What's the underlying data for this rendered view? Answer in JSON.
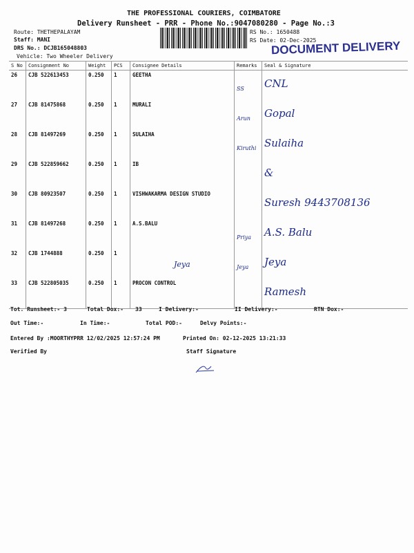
{
  "header": {
    "company": "THE PROFESSIONAL COURIERS, COIMBATORE",
    "subtitle": "Delivery Runsheet - PRR - Phone No.:9047080280 - Page No.:3",
    "route": "Route: THETHEPALAYAM",
    "staff": "Staff: MANI",
    "drs": "DRS No.: DCJB165048803",
    "vehicle": "Vehicle: Two Wheeler Delivery",
    "rs_no": "RS No.: 1650488",
    "rs_date": "RS Date: 02-Dec-2025",
    "stamp": "DOCUMENT DELIVERY"
  },
  "table": {
    "columns": [
      "S No",
      "Consignment No",
      "Weight",
      "PCS",
      "Consignee Details",
      "Remarks",
      "Seal & Signature"
    ],
    "rows": [
      {
        "sno": "26",
        "cn": "CJB 522613453",
        "weight": "0.250",
        "pcs": "1",
        "consignee": "GEETHA",
        "remark": "SS",
        "sign": "CNL"
      },
      {
        "sno": "27",
        "cn": "CJB 81475868",
        "weight": "0.250",
        "pcs": "1",
        "consignee": "MURALI",
        "remark": "Arun",
        "sign": "Gopal"
      },
      {
        "sno": "28",
        "cn": "CJB 81497269",
        "weight": "0.250",
        "pcs": "1",
        "consignee": "SULAIHA",
        "remark": "Kiruthi",
        "sign": "Sulaiha"
      },
      {
        "sno": "29",
        "cn": "CJB 522859662",
        "weight": "0.250",
        "pcs": "1",
        "consignee": "IB",
        "remark": "",
        "sign": "&"
      },
      {
        "sno": "30",
        "cn": "CJB 80923507",
        "weight": "0.250",
        "pcs": "1",
        "consignee": "VISHWAKARMA DESIGN STUDIO",
        "remark": "",
        "sign": "Suresh 9443708136"
      },
      {
        "sno": "31",
        "cn": "CJB 81497268",
        "weight": "0.250",
        "pcs": "1",
        "consignee": "A.S.BALU",
        "remark": "Priya",
        "sign": "A.S. Balu"
      },
      {
        "sno": "32",
        "cn": "CJB 1744888",
        "weight": "0.250",
        "pcs": "1",
        "consignee": "Jeya",
        "remark": "Jeya",
        "sign": "Jeya"
      },
      {
        "sno": "33",
        "cn": "CJB 522805035",
        "weight": "0.250",
        "pcs": "1",
        "consignee": "PROCON CONTROL",
        "remark": "",
        "sign": "Ramesh"
      }
    ]
  },
  "footer": {
    "tot_runsheet": "Tot. Runsheet:- 3",
    "total_dox": "Total Dox:-",
    "total_dox_val": "33",
    "i_delivery": "I Delivery:-",
    "ii_delivery": "II Delivery:-",
    "rtn_dox": "RTN Dox:-",
    "out_time": "Out Time:-",
    "in_time": "In Time:-",
    "total_pod": "Total POD:-",
    "delvy_points": "Delvy Points:-",
    "entered_by": "Entered By :MOORTHYPRR 12/02/2025 12:57:24 PM",
    "printed_on": "Printed On: 02-12-2025 13:21:33",
    "verified_by": "Verified By",
    "staff_signature": "Staff Signature"
  }
}
